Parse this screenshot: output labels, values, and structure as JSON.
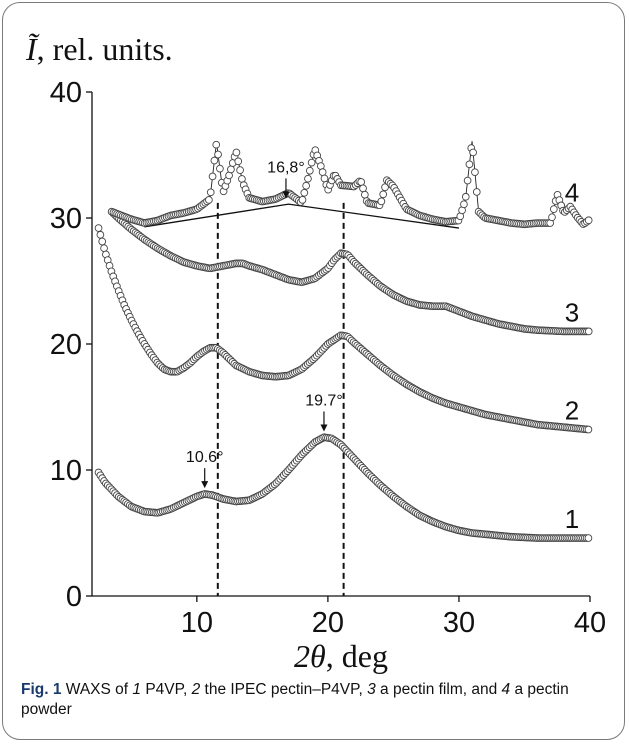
{
  "chart_data": {
    "type": "scatter",
    "ylabel_symbol": "Ĩ",
    "ylabel_rest": ", rel. units.",
    "xlabel_symbol": "2θ",
    "xlabel_rest": ", deg",
    "xlim": [
      2,
      40
    ],
    "ylim": [
      0,
      40
    ],
    "xticks": [
      10,
      20,
      30,
      40
    ],
    "yticks": [
      0,
      10,
      20,
      30,
      40
    ],
    "grid": false,
    "series": [
      {
        "name": "1",
        "label_at": [
          40,
          4.6
        ],
        "points": [
          [
            2.5,
            9.8
          ],
          [
            3,
            9.0
          ],
          [
            4,
            7.9
          ],
          [
            5,
            7.1
          ],
          [
            6,
            6.7
          ],
          [
            7,
            6.6
          ],
          [
            8,
            6.9
          ],
          [
            9,
            7.4
          ],
          [
            10,
            7.9
          ],
          [
            10.6,
            8.1
          ],
          [
            11.2,
            8.0
          ],
          [
            12,
            7.7
          ],
          [
            13,
            7.5
          ],
          [
            14,
            7.6
          ],
          [
            15,
            8.1
          ],
          [
            16,
            8.9
          ],
          [
            17,
            10.0
          ],
          [
            18,
            11.2
          ],
          [
            19,
            12.2
          ],
          [
            19.7,
            12.6
          ],
          [
            20.3,
            12.5
          ],
          [
            21,
            12.0
          ],
          [
            22,
            10.9
          ],
          [
            23,
            9.8
          ],
          [
            24,
            8.8
          ],
          [
            25,
            7.9
          ],
          [
            26,
            7.1
          ],
          [
            27,
            6.4
          ],
          [
            28,
            5.9
          ],
          [
            29,
            5.5
          ],
          [
            30,
            5.2
          ],
          [
            31,
            5.0
          ],
          [
            32,
            4.9
          ],
          [
            33,
            4.8
          ],
          [
            34,
            4.7
          ],
          [
            35,
            4.65
          ],
          [
            36,
            4.6
          ],
          [
            37,
            4.6
          ],
          [
            38,
            4.6
          ],
          [
            39,
            4.6
          ],
          [
            40,
            4.6
          ]
        ]
      },
      {
        "name": "2",
        "label_at": [
          40,
          13.2
        ],
        "points": [
          [
            2.5,
            29.2
          ],
          [
            3,
            27.3
          ],
          [
            3.5,
            25.7
          ],
          [
            4,
            24.3
          ],
          [
            4.5,
            23.0
          ],
          [
            5,
            21.9
          ],
          [
            5.5,
            20.9
          ],
          [
            6,
            20.0
          ],
          [
            6.5,
            19.2
          ],
          [
            7,
            18.5
          ],
          [
            7.5,
            18.0
          ],
          [
            8,
            17.8
          ],
          [
            8.5,
            17.8
          ],
          [
            9,
            18.1
          ],
          [
            9.5,
            18.5
          ],
          [
            10,
            19.0
          ],
          [
            10.5,
            19.4
          ],
          [
            11,
            19.7
          ],
          [
            11.5,
            19.7
          ],
          [
            12,
            19.3
          ],
          [
            12.5,
            18.8
          ],
          [
            13,
            18.3
          ],
          [
            14,
            17.8
          ],
          [
            15,
            17.5
          ],
          [
            16,
            17.4
          ],
          [
            17,
            17.5
          ],
          [
            18,
            18.0
          ],
          [
            19,
            18.9
          ],
          [
            20,
            20.0
          ],
          [
            21,
            20.7
          ],
          [
            21.5,
            20.6
          ],
          [
            22,
            20.1
          ],
          [
            23,
            19.2
          ],
          [
            24,
            18.3
          ],
          [
            25,
            17.5
          ],
          [
            26,
            16.8
          ],
          [
            27,
            16.2
          ],
          [
            28,
            15.7
          ],
          [
            29,
            15.3
          ],
          [
            30,
            15.0
          ],
          [
            31,
            14.7
          ],
          [
            32,
            14.4
          ],
          [
            33,
            14.2
          ],
          [
            34,
            14.0
          ],
          [
            35,
            13.8
          ],
          [
            36,
            13.6
          ],
          [
            37,
            13.5
          ],
          [
            38,
            13.4
          ],
          [
            39,
            13.3
          ],
          [
            40,
            13.2
          ]
        ]
      },
      {
        "name": "3",
        "label_at": [
          40,
          21.0
        ],
        "points": [
          [
            3.5,
            30.5
          ],
          [
            4,
            30.0
          ],
          [
            5,
            29.1
          ],
          [
            6,
            28.3
          ],
          [
            7,
            27.6
          ],
          [
            8,
            27.0
          ],
          [
            9,
            26.5
          ],
          [
            10,
            26.2
          ],
          [
            11,
            26.0
          ],
          [
            12,
            26.2
          ],
          [
            13,
            26.4
          ],
          [
            13.5,
            26.4
          ],
          [
            14,
            26.2
          ],
          [
            15,
            25.9
          ],
          [
            16,
            25.5
          ],
          [
            17,
            25.1
          ],
          [
            18,
            24.9
          ],
          [
            19,
            25.2
          ],
          [
            20,
            26.0
          ],
          [
            20.5,
            26.7
          ],
          [
            21,
            27.2
          ],
          [
            21.5,
            27.1
          ],
          [
            22,
            26.5
          ],
          [
            23,
            25.5
          ],
          [
            24,
            24.6
          ],
          [
            25,
            23.9
          ],
          [
            26,
            23.4
          ],
          [
            27,
            23.1
          ],
          [
            28,
            23.0
          ],
          [
            29,
            23.0
          ],
          [
            30,
            22.6
          ],
          [
            31,
            22.2
          ],
          [
            32,
            21.9
          ],
          [
            33,
            21.6
          ],
          [
            34,
            21.4
          ],
          [
            35,
            21.2
          ],
          [
            36,
            21.1
          ],
          [
            37,
            21.05
          ],
          [
            38,
            21.0
          ],
          [
            39,
            21.0
          ],
          [
            40,
            21.0
          ]
        ]
      },
      {
        "name": "4",
        "label_at": [
          40,
          30.5
        ],
        "points": [
          [
            3.5,
            30.5
          ],
          [
            4,
            30.3
          ],
          [
            5,
            29.9
          ],
          [
            6,
            29.6
          ],
          [
            7,
            29.8
          ],
          [
            8,
            30.2
          ],
          [
            9,
            30.4
          ],
          [
            10,
            30.7
          ],
          [
            11,
            31.5
          ],
          [
            11.5,
            36.0
          ],
          [
            12,
            32.0
          ],
          [
            12.5,
            33.5
          ],
          [
            13,
            35.3
          ],
          [
            13.5,
            32.8
          ],
          [
            14,
            31.6
          ],
          [
            15,
            31.3
          ],
          [
            16,
            31.5
          ],
          [
            17,
            32.0
          ],
          [
            18,
            31.2
          ],
          [
            18.5,
            33.2
          ],
          [
            19,
            35.5
          ],
          [
            19.5,
            34.0
          ],
          [
            20,
            32.2
          ],
          [
            20.5,
            33.5
          ],
          [
            21,
            32.6
          ],
          [
            22,
            32.5
          ],
          [
            22.5,
            33.0
          ],
          [
            23,
            31.2
          ],
          [
            24,
            31.0
          ],
          [
            24.5,
            33.0
          ],
          [
            25,
            32.5
          ],
          [
            26,
            30.7
          ],
          [
            27,
            30.2
          ],
          [
            28,
            29.9
          ],
          [
            29,
            29.7
          ],
          [
            30,
            29.8
          ],
          [
            30.5,
            31.5
          ],
          [
            31,
            36.1
          ],
          [
            31.5,
            30.5
          ],
          [
            32,
            30.0
          ],
          [
            33,
            29.8
          ],
          [
            34,
            29.6
          ],
          [
            35,
            29.5
          ],
          [
            36,
            29.6
          ],
          [
            37,
            29.6
          ],
          [
            37.5,
            31.9
          ],
          [
            38,
            30.4
          ],
          [
            38.5,
            30.9
          ],
          [
            39,
            30.1
          ],
          [
            39.5,
            29.5
          ],
          [
            40,
            29.9
          ]
        ]
      }
    ],
    "background_line": [
      [
        6,
        29.3
      ],
      [
        17,
        31.1
      ],
      [
        30,
        29.2
      ]
    ],
    "guides_x": [
      11.6,
      21.2
    ],
    "annotations": [
      {
        "text": "16,8°",
        "x": 16.8,
        "y": 31.4
      },
      {
        "text": "19.7°",
        "x": 19.7,
        "y": 12.9
      },
      {
        "text": "10.6°",
        "x": 10.6,
        "y": 8.4
      }
    ]
  },
  "caption": {
    "figure_label": "Fig. 1",
    "t1": " WAXS of ",
    "n1": "1",
    "t2": " P4VP, ",
    "n2": "2",
    "t3": " the IPEC pectin–P4VP, ",
    "n3": "3",
    "t4": " a pectin film, and ",
    "n4": "4",
    "t5": " a pectin powder"
  }
}
